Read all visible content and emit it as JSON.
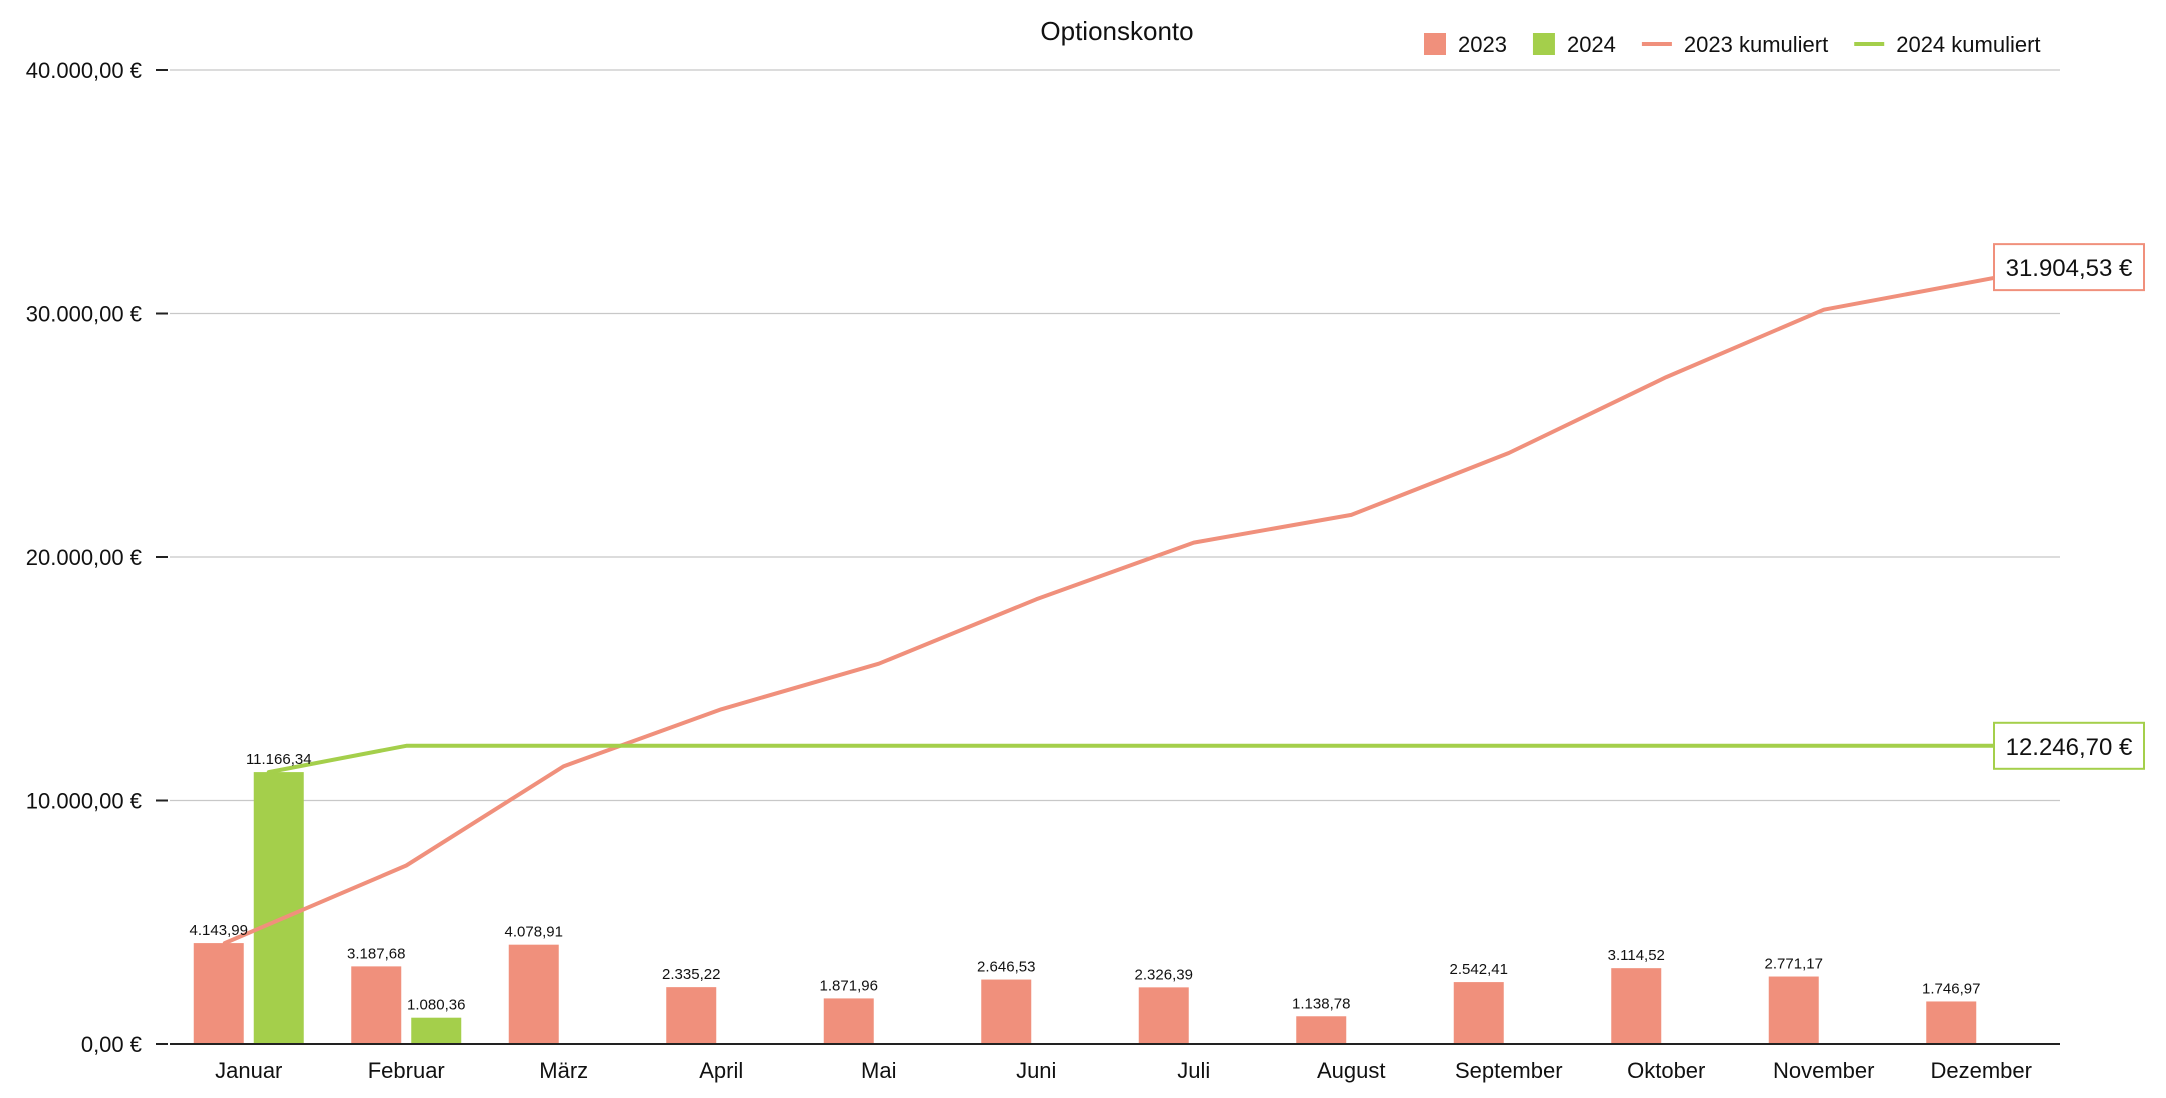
{
  "chart_data": {
    "type": "bar",
    "title": "Optionskonto",
    "categories": [
      "Januar",
      "Februar",
      "März",
      "April",
      "Mai",
      "Juni",
      "Juli",
      "August",
      "September",
      "Oktober",
      "November",
      "Dezember"
    ],
    "ylim": [
      0,
      40000
    ],
    "yticks": [
      0,
      10000,
      20000,
      30000,
      40000
    ],
    "ytick_labels": [
      "0,00 €",
      "10.000,00 €",
      "20.000,00 €",
      "30.000,00 €",
      "40.000,00 €"
    ],
    "grid": true,
    "legend_position": "top-right",
    "series": [
      {
        "name": "2023",
        "kind": "bar",
        "color": "#F0907C",
        "values": [
          4143.99,
          3187.68,
          4078.91,
          2335.22,
          1871.96,
          2646.53,
          2326.39,
          1138.78,
          2542.41,
          3114.52,
          2771.17,
          1746.97
        ],
        "labels": [
          "4.143,99",
          "3.187,68",
          "4.078,91",
          "2.335,22",
          "1.871,96",
          "2.646,53",
          "2.326,39",
          "1.138,78",
          "2.542,41",
          "3.114,52",
          "2.771,17",
          "1.746,97"
        ]
      },
      {
        "name": "2024",
        "kind": "bar",
        "color": "#A4CF4B",
        "values": [
          11166.34,
          1080.36,
          null,
          null,
          null,
          null,
          null,
          null,
          null,
          null,
          null,
          null
        ],
        "labels": [
          "11.166,34",
          "1.080,36",
          null,
          null,
          null,
          null,
          null,
          null,
          null,
          null,
          null,
          null
        ]
      },
      {
        "name": "2023 kumuliert",
        "kind": "line",
        "color": "#F0907C",
        "values": [
          4143.99,
          7331.67,
          11410.58,
          13745.8,
          15617.76,
          18264.29,
          20590.68,
          21729.46,
          24271.87,
          27386.39,
          30157.56,
          31904.53
        ],
        "end_label": "31.904,53 €"
      },
      {
        "name": "2024 kumuliert",
        "kind": "line",
        "color": "#A4CF4B",
        "values": [
          11166.34,
          12246.7,
          12246.7,
          12246.7,
          12246.7,
          12246.7,
          12246.7,
          12246.7,
          12246.7,
          12246.7,
          12246.7,
          12246.7
        ],
        "end_label": "12.246,70 €"
      }
    ]
  }
}
